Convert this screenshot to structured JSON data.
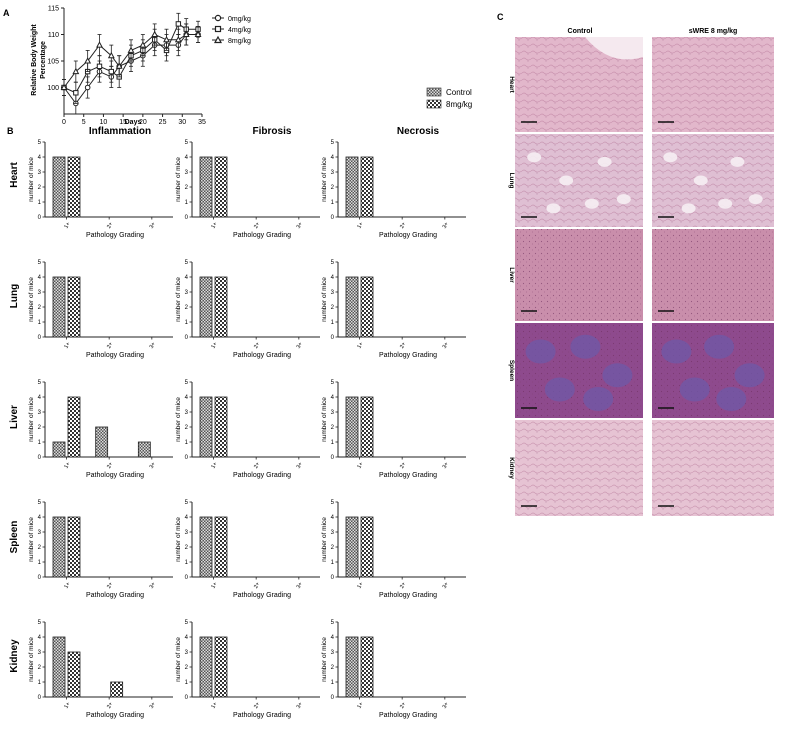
{
  "panels": {
    "A": "A",
    "B": "B",
    "C": "C"
  },
  "panel_a": {
    "xlabel": "Days",
    "ylabel_line1": "Relative Body Weight",
    "ylabel_line2": "Percentage",
    "xticks": [
      "0",
      "5",
      "10",
      "15",
      "20",
      "25",
      "30",
      "35"
    ],
    "yticks": [
      "100",
      "105",
      "110",
      "115"
    ],
    "legend": [
      "0mg/kg",
      "4mg/kg",
      "8mg/kg"
    ]
  },
  "panel_b": {
    "legend": [
      "Control",
      "8mg/kg"
    ],
    "columns": [
      "Inflammation",
      "Fibrosis",
      "Necrosis"
    ],
    "rows": [
      "Heart",
      "Lung",
      "Liver",
      "Spleen",
      "Kidney"
    ],
    "xlabel": "Pathology Grading",
    "ylabel": "number of mice",
    "xticks": [
      "1+",
      "2+",
      "3+"
    ],
    "yticks": [
      "0",
      "1",
      "2",
      "3",
      "4",
      "5"
    ]
  },
  "panel_c": {
    "columns": [
      "Control",
      "sWRE 8 mg/kg"
    ],
    "rows": [
      "Heart",
      "Lung",
      "Liver",
      "Spleen",
      "Kidney"
    ],
    "colors": {
      "Heart": "#e2b7cb",
      "Lung": "#dfbfd3",
      "Liver": "#c98eab",
      "Spleen": "#8e4a8d",
      "Kidney": "#e6c3d3"
    }
  },
  "chart_data": [
    {
      "type": "line",
      "panel": "A",
      "xlabel": "Days",
      "ylabel": "Relative Body Weight Percentage",
      "xlim": [
        0,
        35
      ],
      "ylim": [
        95,
        115
      ],
      "series": [
        {
          "name": "0mg/kg",
          "marker": "circle",
          "x": [
            0,
            3,
            6,
            9,
            12,
            14,
            17,
            20,
            23,
            26,
            29,
            31,
            34
          ],
          "y": [
            100,
            97,
            100,
            103,
            102,
            104,
            105,
            106,
            108,
            108,
            108,
            110,
            110
          ],
          "err": [
            1.5,
            2,
            2,
            2,
            2,
            2,
            2,
            2,
            2,
            2,
            2,
            2,
            1.5
          ]
        },
        {
          "name": "4mg/kg",
          "marker": "square",
          "x": [
            0,
            3,
            6,
            9,
            12,
            14,
            17,
            20,
            23,
            26,
            29,
            31,
            34
          ],
          "y": [
            100,
            99,
            103,
            104,
            103,
            102,
            106,
            107,
            109,
            107,
            112,
            111,
            111
          ],
          "err": [
            1.5,
            2,
            2,
            2,
            2,
            2,
            2,
            2,
            2,
            2,
            2,
            2,
            1.5
          ]
        },
        {
          "name": "8mg/kg",
          "marker": "triangle",
          "x": [
            0,
            3,
            6,
            9,
            12,
            14,
            17,
            20,
            23,
            26,
            29,
            31,
            34
          ],
          "y": [
            100,
            103,
            105,
            108,
            106,
            104,
            107,
            108,
            110,
            109,
            109,
            110,
            110
          ],
          "err": [
            1.5,
            2,
            2,
            2,
            2,
            2,
            2,
            2,
            2,
            2,
            2,
            2,
            1.5
          ]
        }
      ]
    },
    {
      "type": "bar",
      "panel": "B",
      "categories": [
        "1+",
        "2+",
        "3+"
      ],
      "ylim": [
        0,
        5
      ],
      "series_names": [
        "Control",
        "8mg/kg"
      ],
      "grid": [
        [
          {
            "Control": [
              4,
              0,
              0
            ],
            "8mg/kg": [
              4,
              0,
              0
            ]
          },
          {
            "Control": [
              4,
              0,
              0
            ],
            "8mg/kg": [
              4,
              0,
              0
            ]
          },
          {
            "Control": [
              4,
              0,
              0
            ],
            "8mg/kg": [
              4,
              0,
              0
            ]
          }
        ],
        [
          {
            "Control": [
              4,
              0,
              0
            ],
            "8mg/kg": [
              4,
              0,
              0
            ]
          },
          {
            "Control": [
              4,
              0,
              0
            ],
            "8mg/kg": [
              4,
              0,
              0
            ]
          },
          {
            "Control": [
              4,
              0,
              0
            ],
            "8mg/kg": [
              4,
              0,
              0
            ]
          }
        ],
        [
          {
            "Control": [
              1,
              2,
              1
            ],
            "8mg/kg": [
              4,
              0,
              0
            ]
          },
          {
            "Control": [
              4,
              0,
              0
            ],
            "8mg/kg": [
              4,
              0,
              0
            ]
          },
          {
            "Control": [
              4,
              0,
              0
            ],
            "8mg/kg": [
              4,
              0,
              0
            ]
          }
        ],
        [
          {
            "Control": [
              4,
              0,
              0
            ],
            "8mg/kg": [
              4,
              0,
              0
            ]
          },
          {
            "Control": [
              4,
              0,
              0
            ],
            "8mg/kg": [
              4,
              0,
              0
            ]
          },
          {
            "Control": [
              4,
              0,
              0
            ],
            "8mg/kg": [
              4,
              0,
              0
            ]
          }
        ],
        [
          {
            "Control": [
              4,
              0,
              0
            ],
            "8mg/kg": [
              3,
              1,
              0
            ]
          },
          {
            "Control": [
              4,
              0,
              0
            ],
            "8mg/kg": [
              4,
              0,
              0
            ]
          },
          {
            "Control": [
              4,
              0,
              0
            ],
            "8mg/kg": [
              4,
              0,
              0
            ]
          }
        ]
      ]
    }
  ]
}
